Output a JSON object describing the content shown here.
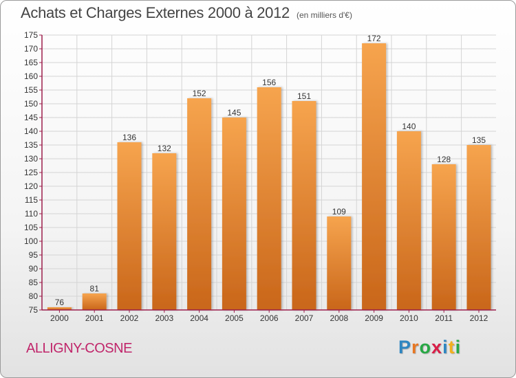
{
  "header": {
    "title": "Achats et Charges Externes 2000 à 2012",
    "unit": "(en milliers d'€)"
  },
  "footer": {
    "commune": "ALLIGNY-COSNE",
    "brand_letters": [
      {
        "char": "P",
        "color": "#2e86c1"
      },
      {
        "char": "r",
        "color": "#e87722"
      },
      {
        "char": "o",
        "color": "#27a844"
      },
      {
        "char": "x",
        "color": "#d91e48"
      },
      {
        "char": "i",
        "color": "#2e86c1"
      },
      {
        "char": "t",
        "color": "#f2b01e"
      },
      {
        "char": "i",
        "color": "#27a844"
      }
    ]
  },
  "colors": {
    "bar_top": "#f6a44e",
    "bar_bottom": "#c9661a",
    "axis": "#9b1d4a",
    "grid": "#d4d4d4",
    "commune_text": "#c0256a"
  },
  "chart_data": {
    "type": "bar",
    "title": "Achats et Charges Externes 2000 à 2012",
    "subtitle": "(en milliers d'€)",
    "categories": [
      "2000",
      "2001",
      "2002",
      "2003",
      "2004",
      "2005",
      "2006",
      "2007",
      "2008",
      "2009",
      "2010",
      "2011",
      "2012"
    ],
    "values": [
      76,
      81,
      136,
      132,
      152,
      145,
      156,
      151,
      109,
      172,
      140,
      128,
      135
    ],
    "ylim": [
      75,
      175
    ],
    "yticks": [
      75,
      80,
      85,
      90,
      95,
      100,
      105,
      110,
      115,
      120,
      125,
      130,
      135,
      140,
      145,
      150,
      155,
      160,
      165,
      170,
      175
    ],
    "grid": true,
    "legend": "none"
  }
}
